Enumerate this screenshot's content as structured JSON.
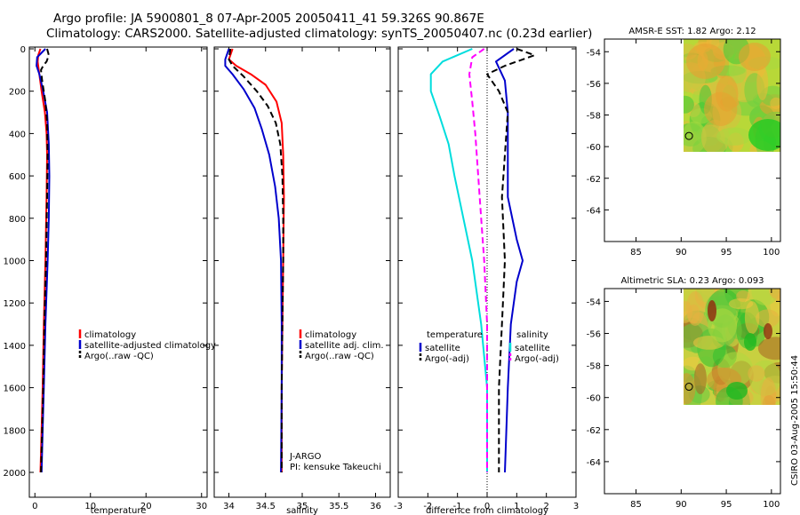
{
  "header": {
    "line1": "Argo profile: JA 5900801_8 07-Apr-2005 20050411_41 59.326S 90.867E",
    "line2": "Climatology: CARS2000. Satellite-adjusted climatology: synTS_20050407.nc (0.23d earlier)"
  },
  "stamp": "CSIRO 03-Aug-2005 15:50:44",
  "chart_data": [
    {
      "type": "line",
      "panel": "temperature",
      "xlabel": "temperature",
      "ylabel": "",
      "xlim": [
        -1,
        31
      ],
      "ylim": [
        2060,
        0
      ],
      "x_ticks": [
        0,
        10,
        20,
        30
      ],
      "x_tick_labels": [
        "0",
        "10",
        "20",
        "30"
      ],
      "y_ticks": [
        0,
        200,
        400,
        600,
        800,
        1000,
        1200,
        1400,
        1600,
        1800,
        2000
      ],
      "y_tick_labels": [
        "0",
        "200",
        "400",
        "600",
        "800",
        "1000",
        "1200",
        "1400",
        "1600",
        "1800",
        "2000"
      ],
      "legend": [
        "climatology",
        "satellite-adjusted climatology",
        "Argo(..raw -QC)"
      ],
      "series": [
        {
          "name": "climatology",
          "color": "#ff0000",
          "dash": "solid",
          "points": [
            [
              1.0,
              0
            ],
            [
              0.6,
              30
            ],
            [
              0.5,
              60
            ],
            [
              0.7,
              100
            ],
            [
              1.2,
              200
            ],
            [
              1.8,
              300
            ],
            [
              2.1,
              400
            ],
            [
              2.2,
              500
            ],
            [
              2.1,
              700
            ],
            [
              1.9,
              1000
            ],
            [
              1.6,
              1300
            ],
            [
              1.4,
              1600
            ],
            [
              1.2,
              1800
            ],
            [
              1.0,
              2000
            ]
          ]
        },
        {
          "name": "satellite-adjusted climatology",
          "color": "#0000cc",
          "dash": "solid",
          "points": [
            [
              1.9,
              0
            ],
            [
              0.4,
              40
            ],
            [
              0.3,
              80
            ],
            [
              0.8,
              120
            ],
            [
              1.5,
              200
            ],
            [
              2.2,
              300
            ],
            [
              2.5,
              450
            ],
            [
              2.6,
              600
            ],
            [
              2.5,
              800
            ],
            [
              2.3,
              1000
            ],
            [
              1.9,
              1300
            ],
            [
              1.6,
              1600
            ],
            [
              1.4,
              1800
            ],
            [
              1.2,
              2000
            ]
          ]
        },
        {
          "name": "Argo(..raw -QC)",
          "color": "#000000",
          "dash": "dashed",
          "points": [
            [
              2.2,
              0
            ],
            [
              2.5,
              30
            ],
            [
              2.1,
              60
            ],
            [
              1.5,
              80
            ],
            [
              1.1,
              100
            ],
            [
              1.3,
              150
            ],
            [
              1.9,
              250
            ],
            [
              2.2,
              350
            ],
            [
              2.3,
              500
            ],
            [
              2.2,
              700
            ],
            [
              2.0,
              1000
            ],
            [
              1.7,
              1300
            ],
            [
              1.5,
              1600
            ],
            [
              1.3,
              1800
            ],
            [
              1.1,
              2000
            ]
          ]
        }
      ]
    },
    {
      "type": "line",
      "panel": "salinity",
      "xlabel": "salinity",
      "ylabel": "",
      "xlim": [
        33.8,
        36.2
      ],
      "ylim": [
        2060,
        0
      ],
      "x_ticks": [
        34,
        34.5,
        35,
        35.5,
        36
      ],
      "x_tick_labels": [
        "34",
        "34.5",
        "35",
        "35.5",
        "36"
      ],
      "legend": [
        "climatology",
        "satellite adj. clim.",
        "Argo(..raw -QC)"
      ],
      "annotation": [
        "J-ARGO",
        "PI: kensuke Takeuchi"
      ],
      "series": [
        {
          "name": "climatology",
          "color": "#ff0000",
          "dash": "solid",
          "points": [
            [
              34.05,
              0
            ],
            [
              34.0,
              50
            ],
            [
              34.1,
              80
            ],
            [
              34.3,
              120
            ],
            [
              34.5,
              170
            ],
            [
              34.65,
              250
            ],
            [
              34.72,
              350
            ],
            [
              34.74,
              500
            ],
            [
              34.75,
              700
            ],
            [
              34.74,
              1000
            ],
            [
              34.73,
              1300
            ],
            [
              34.72,
              1600
            ],
            [
              34.72,
              2000
            ]
          ]
        },
        {
          "name": "satellite adj. clim.",
          "color": "#0000cc",
          "dash": "solid",
          "points": [
            [
              34.0,
              0
            ],
            [
              33.95,
              50
            ],
            [
              33.95,
              80
            ],
            [
              34.05,
              120
            ],
            [
              34.2,
              190
            ],
            [
              34.35,
              280
            ],
            [
              34.45,
              380
            ],
            [
              34.55,
              500
            ],
            [
              34.63,
              650
            ],
            [
              34.68,
              800
            ],
            [
              34.71,
              1000
            ],
            [
              34.72,
              1300
            ],
            [
              34.72,
              1600
            ],
            [
              34.71,
              2000
            ]
          ]
        },
        {
          "name": "Argo(..raw -QC)",
          "color": "#000000",
          "dash": "dashed",
          "points": [
            [
              34.02,
              0
            ],
            [
              34.0,
              50
            ],
            [
              34.05,
              80
            ],
            [
              34.2,
              130
            ],
            [
              34.38,
              200
            ],
            [
              34.53,
              270
            ],
            [
              34.64,
              350
            ],
            [
              34.7,
              450
            ],
            [
              34.73,
              600
            ],
            [
              34.74,
              800
            ],
            [
              34.74,
              1000
            ],
            [
              34.73,
              1300
            ],
            [
              34.72,
              1600
            ],
            [
              34.72,
              2000
            ]
          ]
        }
      ]
    },
    {
      "type": "line",
      "panel": "difference",
      "xlabel": "difference from climatology",
      "ylabel": "",
      "xlim": [
        -3,
        3
      ],
      "ylim": [
        2060,
        0
      ],
      "x_ticks": [
        -3,
        -2,
        -1,
        0,
        1,
        2,
        3
      ],
      "x_tick_labels": [
        "-3",
        "-2",
        "-1",
        "0",
        "1",
        "2",
        "3"
      ],
      "legend_left": {
        "header": "temperature",
        "items": [
          "satellite",
          "Argo(-adj)"
        ]
      },
      "legend_right": {
        "header": "salinity",
        "items": [
          "satellite",
          "Argo(-adj)"
        ]
      },
      "series": [
        {
          "name": "temperature satellite",
          "color": "#0000cc",
          "dash": "solid",
          "points": [
            [
              0.9,
              0
            ],
            [
              0.3,
              60
            ],
            [
              0.6,
              150
            ],
            [
              0.7,
              300
            ],
            [
              0.7,
              500
            ],
            [
              0.7,
              700
            ],
            [
              1.0,
              900
            ],
            [
              1.2,
              1000
            ],
            [
              1.0,
              1100
            ],
            [
              0.8,
              1300
            ],
            [
              0.7,
              1600
            ],
            [
              0.6,
              2000
            ]
          ]
        },
        {
          "name": "temperature Argo(-adj)",
          "color": "#000000",
          "dash": "dashed",
          "points": [
            [
              1.0,
              0
            ],
            [
              1.6,
              30
            ],
            [
              0.6,
              80
            ],
            [
              0.0,
              120
            ],
            [
              0.4,
              200
            ],
            [
              0.7,
              300
            ],
            [
              0.6,
              500
            ],
            [
              0.5,
              700
            ],
            [
              0.6,
              1000
            ],
            [
              0.5,
              1300
            ],
            [
              0.4,
              1600
            ],
            [
              0.4,
              2000
            ]
          ]
        },
        {
          "name": "salinity satellite",
          "color": "#00dddd",
          "dash": "solid",
          "points": [
            [
              -0.5,
              0
            ],
            [
              -1.5,
              60
            ],
            [
              -1.9,
              120
            ],
            [
              -1.9,
              200
            ],
            [
              -1.6,
              320
            ],
            [
              -1.3,
              450
            ],
            [
              -1.1,
              600
            ],
            [
              -0.8,
              800
            ],
            [
              -0.5,
              1000
            ],
            [
              -0.2,
              1300
            ],
            [
              0.0,
              1600
            ],
            [
              0.0,
              2000
            ]
          ]
        },
        {
          "name": "salinity Argo(-adj)",
          "color": "#ff00ff",
          "dash": "dashed",
          "points": [
            [
              -0.1,
              0
            ],
            [
              -0.5,
              40
            ],
            [
              -0.6,
              120
            ],
            [
              -0.5,
              250
            ],
            [
              -0.4,
              400
            ],
            [
              -0.3,
              600
            ],
            [
              -0.2,
              800
            ],
            [
              -0.1,
              1000
            ],
            [
              0.0,
              1300
            ],
            [
              0.0,
              1600
            ],
            [
              0.0,
              2000
            ]
          ]
        }
      ]
    },
    {
      "type": "heatmap",
      "panel": "sst",
      "title": "AMSR-E SST: 1.82 Argo: 2.12",
      "x_ticks": [
        85,
        90,
        95,
        100
      ],
      "x_tick_labels": [
        "85",
        "90",
        "95",
        "100"
      ],
      "y_ticks": [
        -54,
        -56,
        -58,
        -60,
        -62,
        -64
      ],
      "y_tick_labels": [
        "-54",
        "-56",
        "-58",
        "-60",
        "-62",
        "-64"
      ],
      "xlim": [
        81.5,
        101
      ],
      "ylim": [
        -66,
        -53.2
      ],
      "data_extent": {
        "lon": [
          90.3,
          101
        ],
        "lat": [
          -60.1,
          -53.2
        ]
      },
      "marker": {
        "lon": 90.867,
        "lat": -59.326
      }
    },
    {
      "type": "heatmap",
      "panel": "sla",
      "title": "Altimetric SLA: 0.23 Argo: 0.093",
      "x_ticks": [
        85,
        90,
        95,
        100
      ],
      "x_tick_labels": [
        "85",
        "90",
        "95",
        "100"
      ],
      "y_ticks": [
        -54,
        -56,
        -58,
        -60,
        -62,
        -64
      ],
      "y_tick_labels": [
        "-54",
        "-56",
        "-58",
        "-60",
        "-62",
        "-64"
      ],
      "xlim": [
        81.5,
        101
      ],
      "ylim": [
        -66,
        -53.2
      ],
      "data_extent": {
        "lon": [
          90.3,
          101
        ],
        "lat": [
          -60.1,
          -53.2
        ]
      },
      "marker": {
        "lon": 90.867,
        "lat": -59.326
      }
    }
  ]
}
